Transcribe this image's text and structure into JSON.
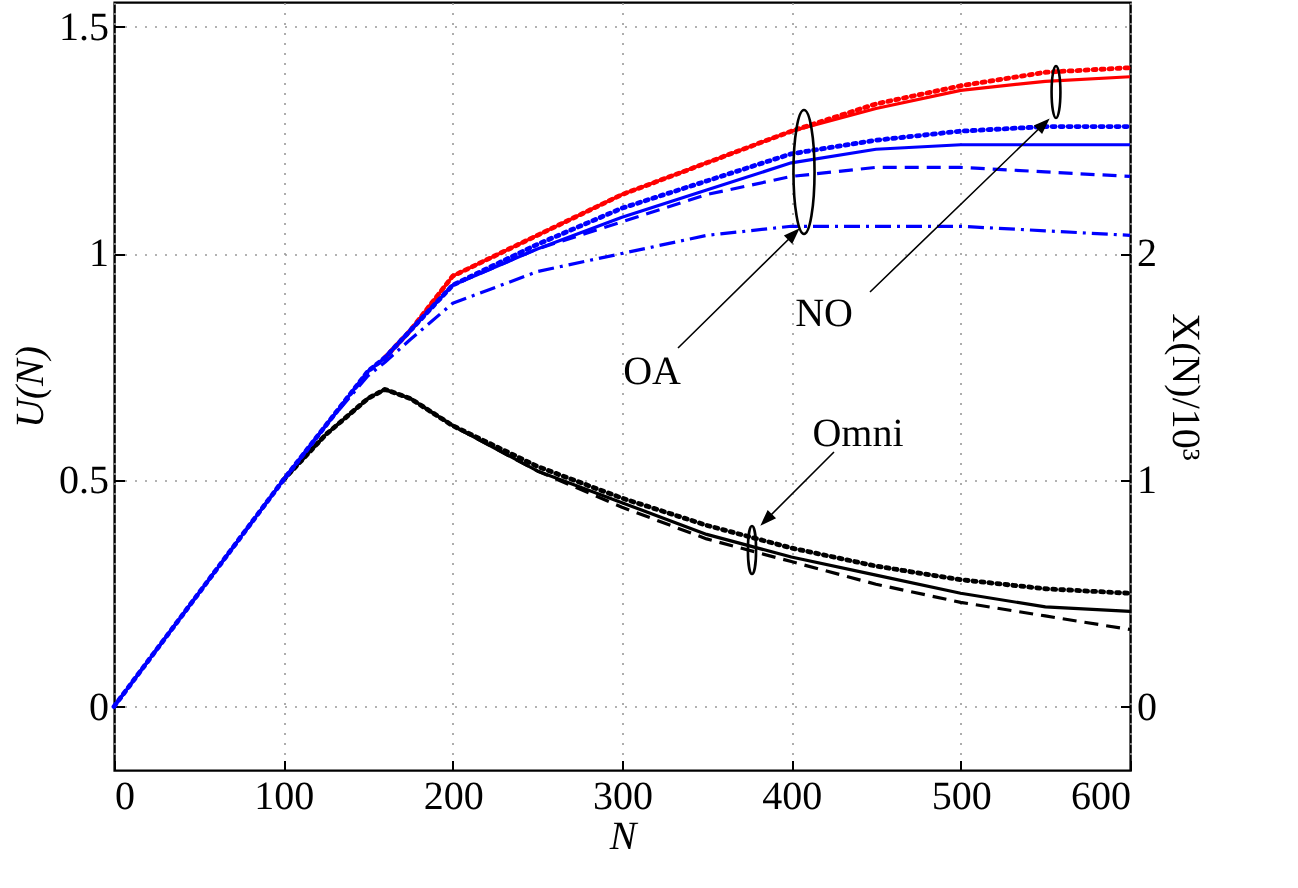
{
  "chart_data": {
    "type": "line",
    "xlabel": "N",
    "ylabel": "U(N)",
    "y2label": "X(N)/10³",
    "x": [
      0,
      50,
      100,
      125,
      150,
      160,
      175,
      200,
      250,
      300,
      350,
      400,
      450,
      500,
      550,
      600
    ],
    "xlim": [
      0,
      600
    ],
    "xticks": [
      0,
      100,
      200,
      300,
      400,
      500,
      600
    ],
    "ylim": [
      -0.14,
      1.555
    ],
    "yticks": [
      0,
      0.5,
      1,
      1.5
    ],
    "y2lim": [
      -0.28,
      3.11
    ],
    "y2ticks": [
      0,
      1,
      2
    ],
    "grid": true,
    "marker": "none",
    "series": [
      {
        "color": "#000000",
        "line_style": "solid",
        "values": [
          null,
          null,
          0.5,
          0.6,
          0.68,
          0.7,
          0.68,
          0.62,
          0.52,
          0.45,
          0.38,
          0.33,
          0.29,
          0.25,
          0.22,
          0.21
        ]
      },
      {
        "color": "#000000",
        "line_style": "dotted",
        "values": [
          null,
          null,
          0.5,
          0.6,
          0.68,
          0.7,
          0.68,
          0.62,
          0.53,
          0.46,
          0.4,
          0.35,
          0.31,
          0.28,
          0.26,
          0.25
        ]
      },
      {
        "color": "#000000",
        "line_style": "dashed",
        "values": [
          null,
          null,
          0.5,
          0.6,
          0.68,
          0.7,
          0.68,
          0.62,
          0.52,
          0.44,
          0.37,
          0.32,
          0.27,
          0.23,
          0.2,
          0.17
        ]
      },
      {
        "color": "#ff0000",
        "line_style": "solid",
        "values": [
          null,
          null,
          null,
          null,
          null,
          0.77,
          0.83,
          0.95,
          1.04,
          1.13,
          1.2,
          1.27,
          1.32,
          1.36,
          1.38,
          1.39
        ]
      },
      {
        "color": "#ff0000",
        "line_style": "dotted",
        "values": [
          null,
          null,
          null,
          null,
          null,
          0.77,
          0.83,
          0.95,
          1.04,
          1.13,
          1.2,
          1.27,
          1.33,
          1.37,
          1.4,
          1.41
        ]
      },
      {
        "color": "#0000ff",
        "line_style": "solid",
        "values": [
          0,
          0.25,
          0.5,
          0.62,
          0.74,
          0.77,
          0.83,
          0.93,
          1.01,
          1.08,
          1.14,
          1.2,
          1.23,
          1.24,
          1.24,
          1.24
        ]
      },
      {
        "color": "#0000ff",
        "line_style": "dotted",
        "values": [
          0,
          0.25,
          0.5,
          0.62,
          0.74,
          0.77,
          0.83,
          0.93,
          1.02,
          1.1,
          1.16,
          1.22,
          1.25,
          1.27,
          1.28,
          1.28
        ]
      },
      {
        "color": "#0000ff",
        "line_style": "dashed",
        "values": [
          0,
          0.25,
          0.5,
          0.62,
          0.74,
          0.77,
          0.83,
          0.93,
          1.01,
          1.07,
          1.13,
          1.17,
          1.19,
          1.19,
          1.18,
          1.17
        ]
      },
      {
        "color": "#0000ff",
        "line_style": "dashdot",
        "values": [
          0,
          0.25,
          0.5,
          0.62,
          0.73,
          0.76,
          0.81,
          0.89,
          0.96,
          1.0,
          1.04,
          1.06,
          1.06,
          1.06,
          1.05,
          1.04
        ]
      }
    ],
    "annotations": [
      "OA",
      "NO",
      "Omni"
    ]
  }
}
